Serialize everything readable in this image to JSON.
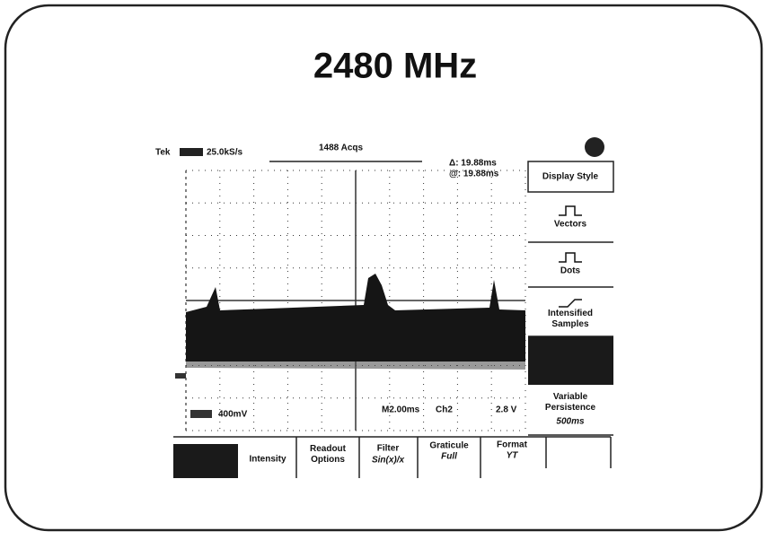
{
  "header": {
    "title": "2480 MHz"
  },
  "scope": {
    "status": {
      "brand": "Tek",
      "sample_rate": "25.0kS/s",
      "acquisitions": "1488 Acqs",
      "delta": "Δ: 19.88ms",
      "at": "@: 19.88ms"
    },
    "readouts": {
      "channel_scale": "400mV",
      "timebase": "M2.00ms",
      "trigger_source": "Ch2",
      "trigger_level": "2.8 V"
    },
    "side_menu": {
      "title": "Display Style",
      "items": [
        {
          "label": "Vectors"
        },
        {
          "label": "Dots"
        },
        {
          "label": "Intensified Samples"
        },
        {
          "label": "Variable Persistence",
          "value": "500ms"
        }
      ]
    },
    "bottom_menu": [
      {
        "label": "Intensity"
      },
      {
        "label": "Readout Options"
      },
      {
        "label": "Filter",
        "value": "Sin(x)/x"
      },
      {
        "label": "Graticule",
        "value": "Full"
      },
      {
        "label": "Format",
        "value": "YT"
      }
    ]
  }
}
